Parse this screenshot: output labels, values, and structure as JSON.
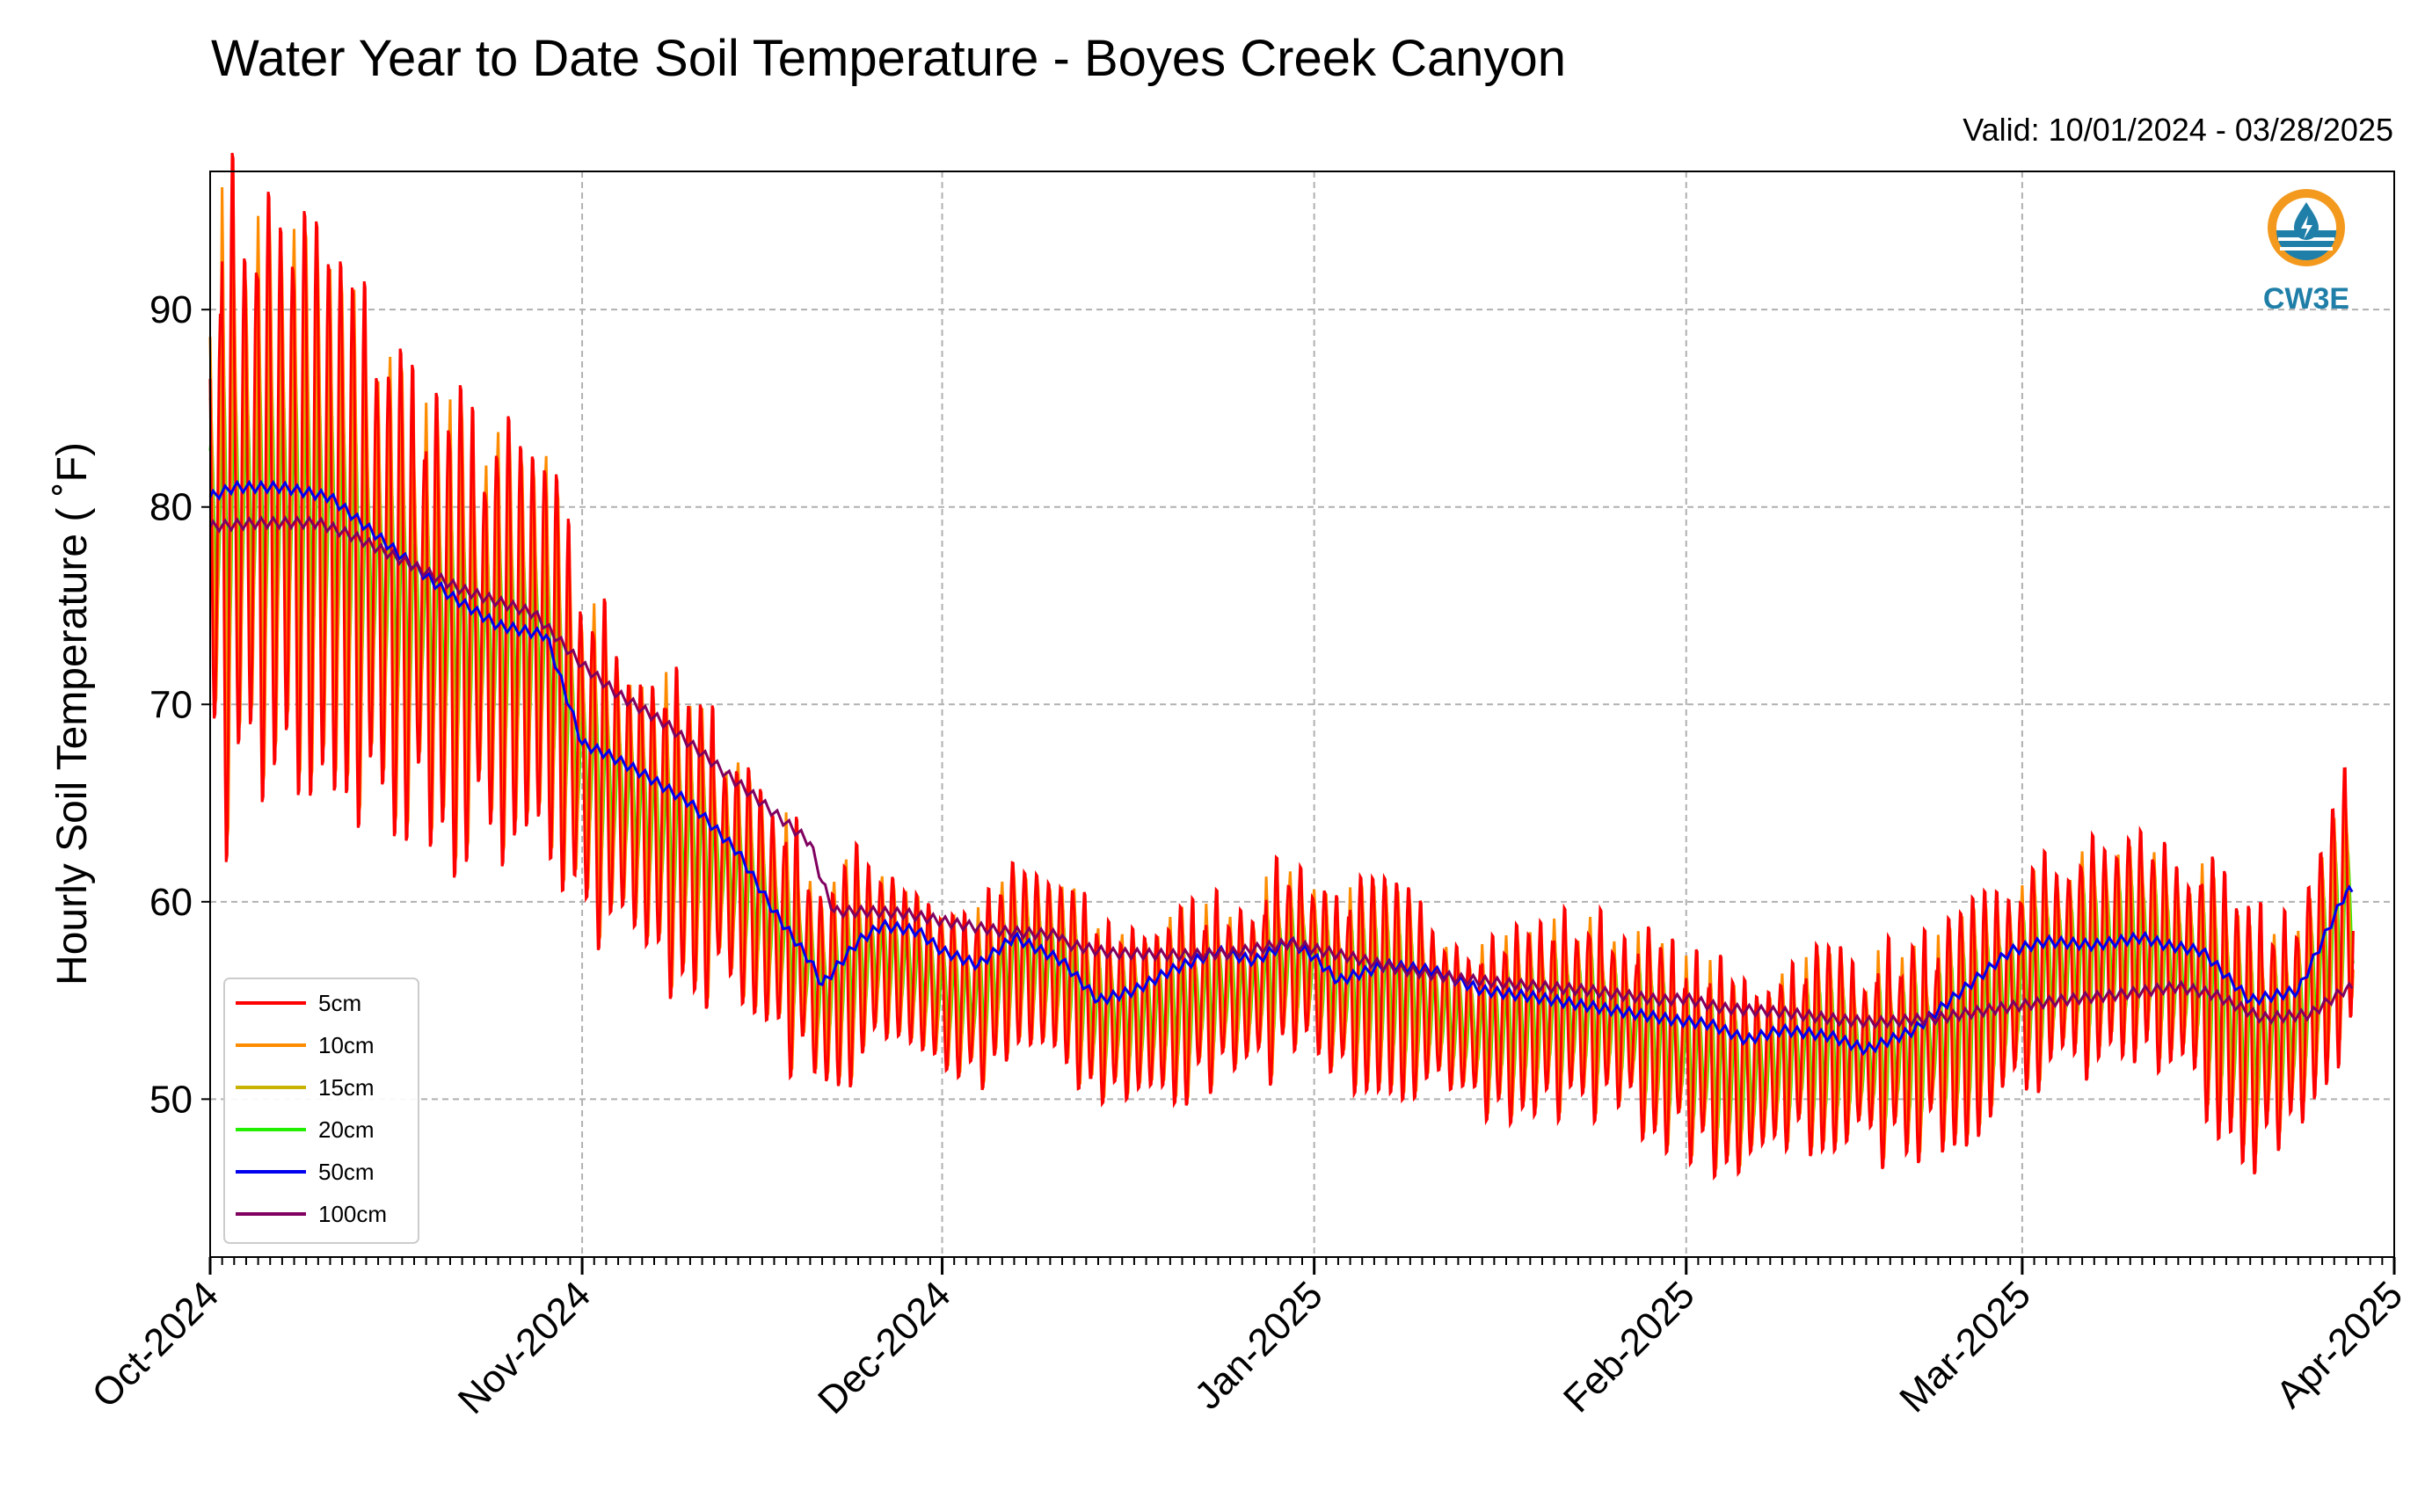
{
  "chart_data": {
    "type": "line",
    "title": "Water Year to Date Soil Temperature - Boyes Creek Canyon",
    "subtitle": "Valid: 10/01/2024 - 03/28/2025",
    "ylabel": "Hourly Soil Temperature ( ˚F)",
    "xlabel": "",
    "xlim": [
      "2024-10-01",
      "2025-04-01"
    ],
    "ylim": [
      42,
      97
    ],
    "y_ticks": [
      50,
      60,
      70,
      80,
      90
    ],
    "y_tick_labels": [
      "50",
      "60",
      "70",
      "80",
      "90"
    ],
    "x_ticks": [
      "2024-10-01",
      "2024-11-01",
      "2024-12-01",
      "2025-01-01",
      "2025-02-01",
      "2025-03-01",
      "2025-04-01"
    ],
    "x_tick_labels": [
      "Oct-2024",
      "Nov-2024",
      "Dec-2024",
      "Jan-2025",
      "Feb-2025",
      "Mar-2025",
      "Apr-2025"
    ],
    "grid": true,
    "legend_position": "lower-left",
    "legend": [
      "5cm",
      "10cm",
      "15cm",
      "20cm",
      "50cm",
      "100cm"
    ],
    "logo_text": "CW3E",
    "series": [
      {
        "name": "5cm",
        "color": "#ff0000",
        "diurnal_amp": [
          15.0,
          8.0,
          4.0,
          4.5,
          4.5,
          5.0,
          6.0
        ],
        "lag_days": 0
      },
      {
        "name": "10cm",
        "color": "#ff8c00",
        "diurnal_amp": [
          14.0,
          7.5,
          3.8,
          4.2,
          4.2,
          4.6,
          5.0
        ],
        "lag_days": 0.08
      },
      {
        "name": "15cm",
        "color": "#c8b400",
        "diurnal_amp": [
          9.0,
          5.0,
          2.8,
          3.2,
          3.2,
          3.6,
          4.0
        ],
        "lag_days": 0.15
      },
      {
        "name": "20cm",
        "color": "#22ee00",
        "diurnal_amp": [
          6.0,
          3.5,
          2.0,
          2.5,
          2.6,
          3.0,
          3.0
        ],
        "lag_days": 0.22
      },
      {
        "name": "50cm",
        "color": "#0000ee",
        "x": [
          "2024-10-01",
          "2024-10-03",
          "2024-10-07",
          "2024-10-11",
          "2024-10-14",
          "2024-10-18",
          "2024-10-21",
          "2024-10-25",
          "2024-10-29",
          "2024-11-01",
          "2024-11-03",
          "2024-11-06",
          "2024-11-10",
          "2024-11-14",
          "2024-11-17",
          "2024-11-20",
          "2024-11-21",
          "2024-11-24",
          "2024-11-26",
          "2024-11-29",
          "2024-12-01",
          "2024-12-04",
          "2024-12-07",
          "2024-12-11",
          "2024-12-14",
          "2024-12-17",
          "2024-12-20",
          "2024-12-24",
          "2024-12-27",
          "2024-12-30",
          "2025-01-01",
          "2025-01-03",
          "2025-01-07",
          "2025-01-11",
          "2025-01-15",
          "2025-01-19",
          "2025-01-23",
          "2025-01-27",
          "2025-01-31",
          "2025-02-03",
          "2025-02-06",
          "2025-02-09",
          "2025-02-13",
          "2025-02-16",
          "2025-02-20",
          "2025-02-24",
          "2025-02-28",
          "2025-03-03",
          "2025-03-07",
          "2025-03-11",
          "2025-03-13",
          "2025-03-16",
          "2025-03-20",
          "2025-03-24",
          "2025-03-28"
        ],
        "y": [
          80.5,
          81.0,
          81.0,
          80.5,
          79.0,
          77.0,
          75.5,
          74.0,
          73.5,
          68.0,
          67.5,
          66.5,
          65.0,
          62.5,
          59.5,
          57.0,
          55.8,
          58.0,
          58.8,
          58.5,
          57.5,
          56.8,
          58.2,
          57.0,
          55.0,
          55.5,
          56.5,
          57.5,
          57.0,
          58.0,
          57.2,
          56.0,
          56.8,
          56.5,
          55.5,
          55.2,
          54.8,
          54.4,
          54.0,
          53.8,
          53.0,
          53.5,
          53.2,
          52.5,
          53.5,
          55.5,
          57.5,
          58.0,
          57.8,
          58.2,
          57.8,
          57.5,
          55.0,
          55.5,
          60.5
        ]
      },
      {
        "name": "100cm",
        "color": "#800060",
        "x": [
          "2024-10-01",
          "2024-10-05",
          "2024-10-10",
          "2024-10-13",
          "2024-10-18",
          "2024-10-22",
          "2024-10-28",
          "2024-11-01",
          "2024-11-04",
          "2024-11-08",
          "2024-11-12",
          "2024-11-16",
          "2024-11-20",
          "2024-11-21",
          "2024-11-22",
          "2024-11-25",
          "2024-11-28",
          "2024-12-02",
          "2024-12-06",
          "2024-12-11",
          "2024-12-11",
          "2024-12-15",
          "2024-12-21",
          "2024-12-25",
          "2024-12-30",
          "2025-01-01",
          "2025-01-04",
          "2025-01-08",
          "2025-01-13",
          "2025-01-18",
          "2025-01-24",
          "2025-01-30",
          "2025-02-01",
          "2025-02-04",
          "2025-02-09",
          "2025-02-14",
          "2025-02-17",
          "2025-02-22",
          "2025-02-27",
          "2025-03-04",
          "2025-03-09",
          "2025-03-14",
          "2025-03-17",
          "2025-03-21",
          "2025-03-25",
          "2025-03-28"
        ],
        "y": [
          79.0,
          79.2,
          79.2,
          78.5,
          77.0,
          75.8,
          74.6,
          72.0,
          70.5,
          69.0,
          67.0,
          65.0,
          63.0,
          61.0,
          59.5,
          59.5,
          59.4,
          58.9,
          58.5,
          58.3,
          57.9,
          57.4,
          57.3,
          57.4,
          57.9,
          57.6,
          57.2,
          56.6,
          56.1,
          55.8,
          55.5,
          55.0,
          55.1,
          54.6,
          54.4,
          54.0,
          53.9,
          54.1,
          54.6,
          55.0,
          55.3,
          55.7,
          55.3,
          54.1,
          54.3,
          55.6
        ]
      }
    ]
  }
}
